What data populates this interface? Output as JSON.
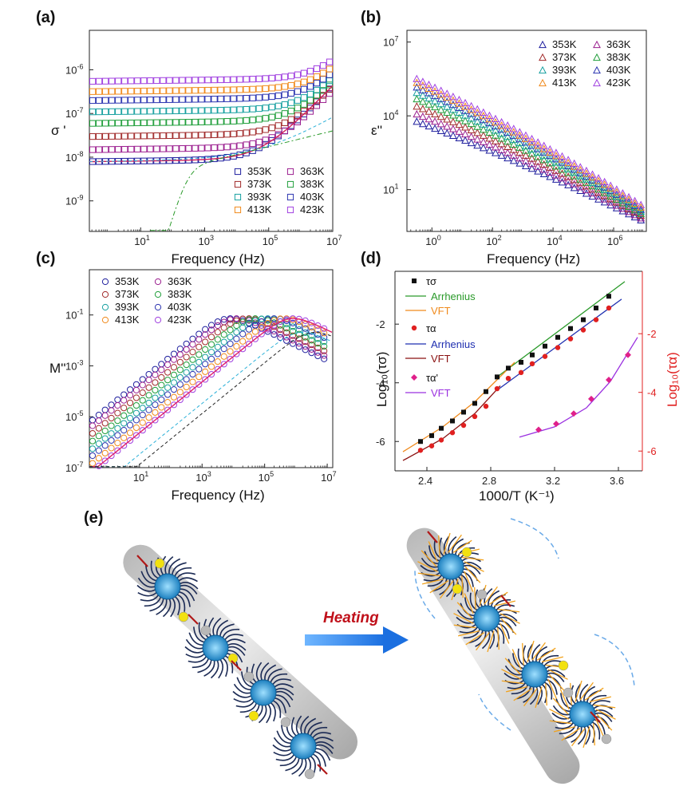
{
  "colors": {
    "353K": "#1f1f9e",
    "363K": "#9b1e8f",
    "373K": "#a12a2a",
    "383K": "#1f9e3a",
    "393K": "#17a0a0",
    "403K": "#2b34b0",
    "413K": "#f08a1c",
    "423K": "#a040e0",
    "tau_sigma": "#111111",
    "arrh_sigma": "#2a9a2a",
    "vft_sigma": "#f08a1c",
    "tau_alpha": "#e02020",
    "arrh_alpha": "#1f2fb0",
    "vft_alpha": "#8a1010",
    "tau_alpha_p": "#e0208a",
    "vft_alpha_p": "#9a30e0"
  },
  "panel_e": {
    "label": "(e)",
    "heating_label": "Heating"
  },
  "chart_data": [
    {
      "panel": "(a)",
      "type": "scatter",
      "xlabel": "Frequency (Hz)",
      "ylabel": "σ '",
      "xscale": "log",
      "yscale": "log",
      "xlim": [
        0.25,
        10000000.0
      ],
      "ylim": [
        2e-10,
        8e-06
      ],
      "xticks": [
        {
          "v": 10,
          "t": "10"
        },
        {
          "v": 1000,
          "t": "10"
        },
        {
          "v": 100000,
          "t": "10"
        },
        {
          "v": 10000000,
          "t": "10"
        }
      ],
      "xtick_exp": [
        "1",
        "3",
        "5",
        "7"
      ],
      "yticks": [
        {
          "v": 1e-09,
          "t": "10"
        },
        {
          "v": 1e-08,
          "t": "10"
        },
        {
          "v": 1e-07,
          "t": "10"
        },
        {
          "v": 1e-06,
          "t": "10"
        }
      ],
      "ytick_exp": [
        "-9",
        "-8",
        "-7",
        "-6"
      ],
      "legend": [
        "353K",
        "363K",
        "373K",
        "383K",
        "393K",
        "403K",
        "413K",
        "423K"
      ],
      "series": [
        {
          "name": "353K",
          "sigma_dc": 8e-09,
          "fc": 60000.0
        },
        {
          "name": "363K",
          "sigma_dc": 1.5e-08,
          "fc": 200000.0
        },
        {
          "name": "373K",
          "sigma_dc": 3e-08,
          "fc": 400000.0
        },
        {
          "name": "383K",
          "sigma_dc": 6e-08,
          "fc": 800000.0
        },
        {
          "name": "393K",
          "sigma_dc": 1.1e-07,
          "fc": 1500000.0
        },
        {
          "name": "403K",
          "sigma_dc": 2e-07,
          "fc": 2500000.0
        },
        {
          "name": "413K",
          "sigma_dc": 3.2e-07,
          "fc": 3500000.0
        },
        {
          "name": "423K",
          "sigma_dc": 5.5e-07,
          "fc": 5000000.0
        }
      ]
    },
    {
      "panel": "(b)",
      "type": "scatter",
      "xlabel": "Frequency (Hz)",
      "ylabel": "ε''",
      "xscale": "log",
      "yscale": "log",
      "xlim": [
        0.15,
        12000000.0
      ],
      "ylim": [
        0.2,
        30000000.0
      ],
      "xticks": [
        {
          "v": 1,
          "t": "10"
        },
        {
          "v": 100,
          "t": "10"
        },
        {
          "v": 10000,
          "t": "10"
        },
        {
          "v": 1000000,
          "t": "10"
        }
      ],
      "xtick_exp": [
        "0",
        "2",
        "4",
        "6"
      ],
      "yticks": [
        {
          "v": 10,
          "t": "10"
        },
        {
          "v": 10000,
          "t": "10"
        },
        {
          "v": 10000000,
          "t": "10"
        }
      ],
      "ytick_exp": [
        "1",
        "4",
        "7"
      ],
      "legend": [
        "353K",
        "363K",
        "373K",
        "383K",
        "393K",
        "403K",
        "413K",
        "423K"
      ],
      "series": [
        {
          "name": "353K",
          "y_at_0_3Hz": 6000.0,
          "y_at_1e7Hz": 0.5
        },
        {
          "name": "363K",
          "y_at_0_3Hz": 12000.0,
          "y_at_1e7Hz": 0.6
        },
        {
          "name": "373K",
          "y_at_0_3Hz": 25000.0,
          "y_at_1e7Hz": 0.75
        },
        {
          "name": "383K",
          "y_at_0_3Hz": 50000.0,
          "y_at_1e7Hz": 0.9
        },
        {
          "name": "393K",
          "y_at_0_3Hz": 90000.0,
          "y_at_1e7Hz": 1.1
        },
        {
          "name": "403K",
          "y_at_0_3Hz": 150000.0,
          "y_at_1e7Hz": 1.3
        },
        {
          "name": "413K",
          "y_at_0_3Hz": 230000.0,
          "y_at_1e7Hz": 1.6
        },
        {
          "name": "423K",
          "y_at_0_3Hz": 330000.0,
          "y_at_1e7Hz": 2.0
        }
      ]
    },
    {
      "panel": "(c)",
      "type": "scatter",
      "xlabel": "Frequency (Hz)",
      "ylabel": "M''",
      "xscale": "log",
      "yscale": "log",
      "xlim": [
        0.25,
        15000000.0
      ],
      "ylim": [
        1e-07,
        6
      ],
      "xticks": [
        {
          "v": 10,
          "t": "10"
        },
        {
          "v": 1000,
          "t": "10"
        },
        {
          "v": 100000,
          "t": "10"
        },
        {
          "v": 10000000,
          "t": "10"
        }
      ],
      "xtick_exp": [
        "1",
        "3",
        "5",
        "7"
      ],
      "yticks": [
        {
          "v": 1e-07,
          "t": "10"
        },
        {
          "v": 1e-05,
          "t": "10"
        },
        {
          "v": 0.001,
          "t": "10"
        },
        {
          "v": 0.1,
          "t": "10"
        }
      ],
      "ytick_exp": [
        "-7",
        "-5",
        "-3",
        "-1"
      ],
      "legend": [
        "353K",
        "363K",
        "373K",
        "383K",
        "393K",
        "403K",
        "413K",
        "423K"
      ],
      "series": [
        {
          "name": "353K",
          "f_peak": 6000.0,
          "m_peak": 0.07
        },
        {
          "name": "363K",
          "f_peak": 10000.0,
          "m_peak": 0.07
        },
        {
          "name": "373K",
          "f_peak": 20000.0,
          "m_peak": 0.07
        },
        {
          "name": "383K",
          "f_peak": 40000.0,
          "m_peak": 0.07
        },
        {
          "name": "393K",
          "f_peak": 80000.0,
          "m_peak": 0.07
        },
        {
          "name": "403K",
          "f_peak": 150000.0,
          "m_peak": 0.07
        },
        {
          "name": "413K",
          "f_peak": 300000.0,
          "m_peak": 0.07
        },
        {
          "name": "423K",
          "f_peak": 600000.0,
          "m_peak": 0.07
        }
      ]
    },
    {
      "panel": "(d)",
      "type": "scatter",
      "xlabel": "1000/T (K⁻¹)",
      "ylabel": "Log₁₀(τσ)",
      "y2label": "Log₁₀(τα)",
      "xlim": [
        2.2,
        3.75
      ],
      "ylim": [
        -7.0,
        -0.2
      ],
      "y2lim": [
        -7.0,
        -0.2
      ],
      "xticks": [
        2.4,
        2.8,
        3.2,
        3.6
      ],
      "yticks": [
        -6,
        -4,
        -2
      ],
      "y2ticks": [
        -6,
        -4,
        -2
      ],
      "legend": [
        "τσ",
        "Arrhenius",
        "VFT",
        "τα",
        "Arrhenius",
        "VFT",
        "τα'",
        "VFT"
      ],
      "series": [
        {
          "name": "τσ",
          "x": [
            2.36,
            2.43,
            2.49,
            2.56,
            2.63,
            2.7,
            2.77,
            2.84,
            2.91,
            2.99,
            3.06,
            3.14,
            3.22,
            3.3,
            3.38,
            3.46,
            3.54
          ],
          "y": [
            -6.0,
            -5.8,
            -5.55,
            -5.3,
            -5.0,
            -4.7,
            -4.3,
            -3.8,
            -3.5,
            -3.3,
            -3.05,
            -2.75,
            -2.45,
            -2.15,
            -1.85,
            -1.45,
            -1.05
          ]
        },
        {
          "name": "τα",
          "x": [
            2.36,
            2.43,
            2.49,
            2.56,
            2.63,
            2.7,
            2.77,
            2.84,
            2.91,
            2.99,
            3.06,
            3.14,
            3.22,
            3.3,
            3.38,
            3.46,
            3.54
          ],
          "y": [
            -6.3,
            -6.15,
            -5.95,
            -5.7,
            -5.45,
            -5.15,
            -4.8,
            -4.2,
            -3.85,
            -3.65,
            -3.35,
            -3.1,
            -2.8,
            -2.5,
            -2.2,
            -1.85,
            -1.45
          ]
        },
        {
          "name": "τα'",
          "x": [
            3.1,
            3.21,
            3.32,
            3.43,
            3.54,
            3.66
          ],
          "y": [
            -5.6,
            -5.4,
            -5.05,
            -4.55,
            -3.9,
            -3.05
          ]
        }
      ]
    }
  ]
}
